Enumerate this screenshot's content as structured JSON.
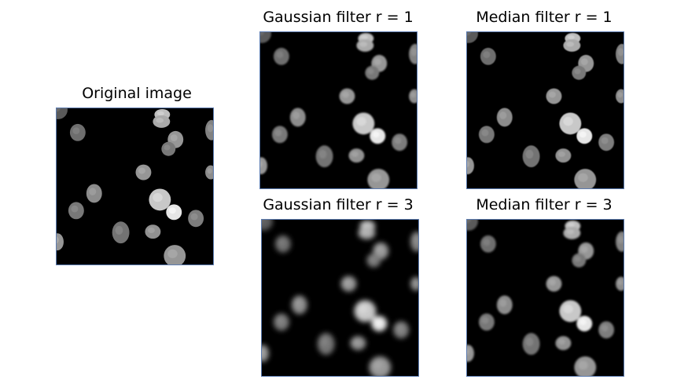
{
  "panels": {
    "original": {
      "title": "Original image",
      "blur": 0
    },
    "gauss1": {
      "title": "Gaussian filter r = 1",
      "blur": 1.2
    },
    "median1": {
      "title": "Median filter r = 1",
      "blur": 0.6
    },
    "gauss3": {
      "title": "Gaussian filter r = 3",
      "blur": 3.2
    },
    "median3": {
      "title": "Median filter r = 3",
      "blur": 1.4
    }
  },
  "colors": {
    "background": "#000000",
    "panel_border": "#5b7bb0",
    "label_text": "#000000"
  }
}
